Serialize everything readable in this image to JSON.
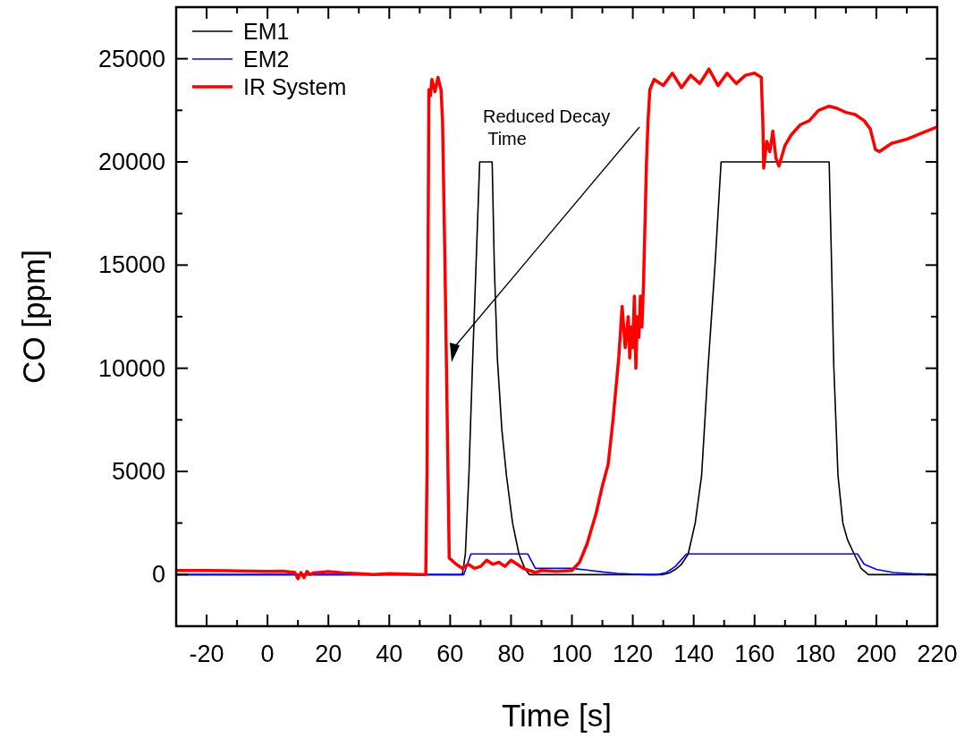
{
  "chart_data": {
    "type": "line",
    "xlabel": "Time [s]",
    "ylabel": "CO [ppm]",
    "xlim": [
      -30,
      220
    ],
    "ylim": [
      -2500,
      27500
    ],
    "xticks": [
      {
        "value": -30,
        "label": null
      },
      -20,
      {
        "value": -10,
        "label": null
      },
      0,
      {
        "value": 10,
        "label": null
      },
      20,
      {
        "value": 30,
        "label": null
      },
      40,
      {
        "value": 50,
        "label": null
      },
      60,
      {
        "value": 70,
        "label": null
      },
      80,
      {
        "value": 90,
        "label": null
      },
      100,
      {
        "value": 110,
        "label": null
      },
      120,
      {
        "value": 130,
        "label": null
      },
      140,
      {
        "value": 150,
        "label": null
      },
      160,
      {
        "value": 170,
        "label": null
      },
      180,
      {
        "value": 190,
        "label": null
      },
      200,
      {
        "value": 210,
        "label": null
      },
      220
    ],
    "yticks": [
      {
        "value": -2500,
        "label": null
      },
      0,
      {
        "value": 2500,
        "label": null
      },
      5000,
      {
        "value": 7500,
        "label": null
      },
      10000,
      {
        "value": 12500,
        "label": null
      },
      15000,
      {
        "value": 17500,
        "label": null
      },
      20000,
      {
        "value": 22500,
        "label": null
      },
      25000
    ],
    "grid": false,
    "legend": "top left",
    "line_style": "solid",
    "annotations": [
      "Reduced Decay\n Time"
    ],
    "series": [
      {
        "name": "EM1",
        "color": "#000000",
        "x": [
          -30,
          64,
          65,
          66.2,
          67.3,
          68.5,
          69.7,
          73.8,
          74.5,
          75.5,
          77,
          78.5,
          80.5,
          82.6,
          84.5,
          86,
          130,
          132,
          134,
          136,
          138.2,
          140.5,
          142.6,
          144.7,
          147,
          149,
          184.5,
          185.3,
          186,
          187.4,
          189,
          190.5,
          192.7,
          195,
          197.4,
          220
        ],
        "values": [
          0,
          0,
          1000,
          5000,
          10000,
          15000,
          20000,
          20000,
          15000,
          10500,
          7000,
          4800,
          2500,
          1000,
          300,
          0,
          0,
          80,
          250,
          500,
          1000,
          2500,
          4800,
          10000,
          15000,
          20000,
          20000,
          15000,
          10200,
          4800,
          2500,
          1700,
          1000,
          300,
          0,
          0
        ]
      },
      {
        "name": "EM2",
        "color": "#0000ff",
        "x": [
          -30,
          64.5,
          66.8,
          85.5,
          88,
          100,
          105,
          110,
          115,
          120,
          125,
          128,
          131,
          134,
          137.6,
          193.8,
          196,
          200,
          205.6,
          212,
          220
        ],
        "values": [
          0,
          0,
          1000,
          1000,
          300,
          300,
          220,
          130,
          60,
          20,
          0,
          0,
          100,
          400,
          1000,
          1000,
          500,
          250,
          100,
          40,
          0
        ],
        "type": "line"
      },
      {
        "name": "IR System",
        "color": "#ff0000",
        "x": [
          -30,
          -20,
          -10,
          0,
          5,
          9,
          10,
          11,
          12,
          13,
          14,
          15,
          20,
          25,
          30,
          35,
          40,
          45,
          50,
          52,
          52.4,
          53,
          53.5,
          54,
          55,
          56,
          57,
          57.5,
          58.3,
          59.7,
          62,
          64,
          66,
          68,
          70,
          72,
          74,
          76,
          78,
          80,
          82,
          84,
          86,
          88,
          90,
          95,
          100,
          102.5,
          105,
          108,
          110,
          111.9,
          113.5,
          115.4,
          116.5,
          117.5,
          118.5,
          119,
          119.5,
          120,
          120.5,
          121,
          121.5,
          122,
          122.5,
          123,
          123.5,
          124,
          124.5,
          125,
          125.6,
          127,
          130,
          133,
          136,
          139,
          142,
          145,
          148,
          151,
          154,
          157,
          160,
          162.2,
          162.7,
          163,
          164,
          165,
          166,
          167,
          168,
          170,
          172,
          175,
          178,
          181,
          184.5,
          187,
          190,
          193,
          196,
          198,
          199.7,
          201,
          205,
          210,
          215,
          220
        ],
        "values": [
          200,
          200,
          180,
          160,
          170,
          100,
          -200,
          100,
          -150,
          150,
          0,
          80,
          150,
          80,
          50,
          0,
          50,
          20,
          0,
          0,
          5000,
          23500,
          23200,
          24000,
          23400,
          24100,
          23500,
          22000,
          15000,
          800,
          500,
          300,
          500,
          300,
          400,
          700,
          500,
          600,
          400,
          700,
          500,
          300,
          200,
          100,
          200,
          150,
          200,
          600,
          1500,
          3000,
          4300,
          5340,
          7500,
          10550,
          13000,
          11000,
          12500,
          10500,
          12000,
          11000,
          13500,
          10000,
          12500,
          11500,
          13500,
          12000,
          14000,
          17000,
          20000,
          22000,
          23500,
          24000,
          23700,
          24300,
          23600,
          24200,
          23800,
          24500,
          23700,
          24300,
          23800,
          24200,
          24300,
          24100,
          22000,
          19700,
          21000,
          20500,
          21500,
          20200,
          19800,
          20800,
          21300,
          21800,
          22000,
          22500,
          22700,
          22600,
          22400,
          22300,
          22000,
          21600,
          20600,
          20500,
          20900,
          21100,
          21400,
          21700
        ]
      }
    ]
  }
}
